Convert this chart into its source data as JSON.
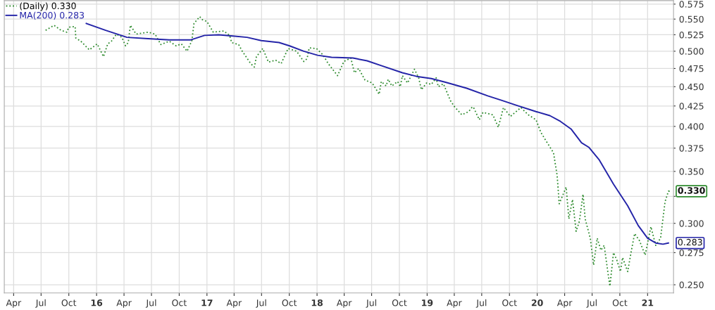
{
  "chart_data": {
    "type": "line",
    "log": "y",
    "grid": true,
    "legend": "top left",
    "xlim": [
      "2015-03-01",
      "2021-03-28"
    ],
    "ylim": [
      0.244,
      0.581
    ],
    "xticks": [
      {
        "value": "2015-04-01",
        "label": "Apr"
      },
      {
        "value": "2015-07-01",
        "label": "Jul"
      },
      {
        "value": "2015-10-01",
        "label": "Oct"
      },
      {
        "value": "2016-01-01",
        "label": "16"
      },
      {
        "value": "2016-04-01",
        "label": "Apr"
      },
      {
        "value": "2016-07-01",
        "label": "Jul"
      },
      {
        "value": "2016-10-01",
        "label": "Oct"
      },
      {
        "value": "2017-01-01",
        "label": "17"
      },
      {
        "value": "2017-04-01",
        "label": "Apr"
      },
      {
        "value": "2017-07-01",
        "label": "Jul"
      },
      {
        "value": "2017-10-01",
        "label": "Oct"
      },
      {
        "value": "2018-01-01",
        "label": "18"
      },
      {
        "value": "2018-04-01",
        "label": "Apr"
      },
      {
        "value": "2018-07-01",
        "label": "Jul"
      },
      {
        "value": "2018-10-01",
        "label": "Oct"
      },
      {
        "value": "2019-01-01",
        "label": "19"
      },
      {
        "value": "2019-04-01",
        "label": "Apr"
      },
      {
        "value": "2019-07-01",
        "label": "Jul"
      },
      {
        "value": "2019-10-01",
        "label": "Oct"
      },
      {
        "value": "2020-01-01",
        "label": "20"
      },
      {
        "value": "2020-04-01",
        "label": "Apr"
      },
      {
        "value": "2020-07-01",
        "label": "Jul"
      },
      {
        "value": "2020-10-01",
        "label": "Oct"
      },
      {
        "value": "2021-01-01",
        "label": "21"
      }
    ],
    "yticks": [
      {
        "value": 0.25,
        "label": "0.250"
      },
      {
        "value": 0.275,
        "label": "0.275"
      },
      {
        "value": 0.3,
        "label": "0.300"
      },
      {
        "value": 0.325,
        "label": null
      },
      {
        "value": 0.35,
        "label": "0.350"
      },
      {
        "value": 0.375,
        "label": "0.375"
      },
      {
        "value": 0.4,
        "label": "0.400"
      },
      {
        "value": 0.425,
        "label": "0.425"
      },
      {
        "value": 0.45,
        "label": "0.450"
      },
      {
        "value": 0.475,
        "label": "0.475"
      },
      {
        "value": 0.5,
        "label": "0.500"
      },
      {
        "value": 0.525,
        "label": "0.525"
      },
      {
        "value": 0.55,
        "label": "0.550"
      },
      {
        "value": 0.575,
        "label": "0.575"
      }
    ],
    "annotations": [
      {
        "text": "0.330",
        "x": "2021-03-21",
        "y": 0.33
      },
      {
        "text": "0.283",
        "x": "2021-03-11",
        "y": 0.283
      }
    ],
    "series": [
      {
        "name": "(Daily) 0.330",
        "color": "#2e8b2e",
        "line_style": "dotted",
        "x": [
          "2015-07-16",
          "2015-08-13",
          "2015-09-05",
          "2015-09-24",
          "2015-10-01",
          "2015-10-22",
          "2015-10-24",
          "2015-11-10",
          "2015-12-08",
          "2016-01-03",
          "2016-01-24",
          "2016-02-07",
          "2016-02-19",
          "2016-03-07",
          "2016-03-25",
          "2016-04-06",
          "2016-04-15",
          "2016-04-22",
          "2016-05-11",
          "2016-06-20",
          "2016-07-13",
          "2016-08-01",
          "2016-08-29",
          "2016-09-21",
          "2016-10-08",
          "2016-10-27",
          "2016-11-12",
          "2016-11-19",
          "2016-12-08",
          "2016-12-17",
          "2017-01-01",
          "2017-01-22",
          "2017-02-26",
          "2017-03-17",
          "2017-03-24",
          "2017-04-16",
          "2017-04-28",
          "2017-05-26",
          "2017-06-07",
          "2017-06-14",
          "2017-07-05",
          "2017-07-24",
          "2017-08-16",
          "2017-09-04",
          "2017-09-27",
          "2017-10-25",
          "2017-11-18",
          "2017-11-29",
          "2017-12-06",
          "2017-12-30",
          "2018-01-20",
          "2018-02-07",
          "2018-03-10",
          "2018-03-31",
          "2018-04-23",
          "2018-05-05",
          "2018-05-19",
          "2018-06-09",
          "2018-07-03",
          "2018-07-26",
          "2018-08-02",
          "2018-08-18",
          "2018-08-25",
          "2018-09-06",
          "2018-09-25",
          "2018-10-04",
          "2018-10-11",
          "2018-10-28",
          "2018-11-20",
          "2018-12-04",
          "2018-12-13",
          "2018-12-30",
          "2019-01-15",
          "2019-01-31",
          "2019-02-07",
          "2019-02-24",
          "2019-03-19",
          "2019-04-02",
          "2019-04-26",
          "2019-05-19",
          "2019-05-31",
          "2019-06-04",
          "2019-06-23",
          "2019-07-05",
          "2019-08-07",
          "2019-08-25",
          "2019-09-11",
          "2019-10-04",
          "2019-11-08",
          "2019-12-02",
          "2019-12-28",
          "2020-01-13",
          "2020-02-05",
          "2020-02-24",
          "2020-03-07",
          "2020-03-14",
          "2020-04-06",
          "2020-04-15",
          "2020-04-27",
          "2020-05-09",
          "2020-05-20",
          "2020-06-01",
          "2020-06-08",
          "2020-06-25",
          "2020-07-06",
          "2020-07-18",
          "2020-07-30",
          "2020-08-10",
          "2020-08-22",
          "2020-08-29",
          "2020-09-10",
          "2020-09-21",
          "2020-10-03",
          "2020-10-10",
          "2020-10-27",
          "2020-11-07",
          "2020-11-19",
          "2020-12-05",
          "2020-12-24",
          "2021-01-12",
          "2021-01-28",
          "2021-02-13",
          "2021-02-28",
          "2021-03-11",
          "2021-03-21"
        ],
        "values": [
          0.532,
          0.54,
          0.532,
          0.529,
          0.537,
          0.538,
          0.52,
          0.515,
          0.502,
          0.511,
          0.492,
          0.511,
          0.515,
          0.526,
          0.521,
          0.508,
          0.513,
          0.54,
          0.526,
          0.529,
          0.526,
          0.51,
          0.515,
          0.508,
          0.511,
          0.5,
          0.516,
          0.543,
          0.554,
          0.549,
          0.546,
          0.529,
          0.531,
          0.524,
          0.513,
          0.51,
          0.5,
          0.482,
          0.477,
          0.492,
          0.504,
          0.484,
          0.487,
          0.482,
          0.504,
          0.5,
          0.485,
          0.489,
          0.505,
          0.504,
          0.495,
          0.482,
          0.465,
          0.485,
          0.49,
          0.469,
          0.475,
          0.459,
          0.455,
          0.44,
          0.457,
          0.451,
          0.46,
          0.451,
          0.457,
          0.45,
          0.465,
          0.455,
          0.474,
          0.462,
          0.446,
          0.455,
          0.453,
          0.462,
          0.45,
          0.454,
          0.432,
          0.424,
          0.414,
          0.418,
          0.424,
          0.423,
          0.408,
          0.417,
          0.414,
          0.399,
          0.423,
          0.412,
          0.423,
          0.414,
          0.408,
          0.393,
          0.38,
          0.37,
          0.346,
          0.318,
          0.334,
          0.304,
          0.322,
          0.293,
          0.302,
          0.327,
          0.304,
          0.287,
          0.265,
          0.287,
          0.277,
          0.281,
          0.26,
          0.249,
          0.275,
          0.269,
          0.26,
          0.271,
          0.26,
          0.275,
          0.291,
          0.285,
          0.273,
          0.297,
          0.281,
          0.287,
          0.32,
          0.33,
          0.33
        ]
      },
      {
        "name": "MA(200) 0.283",
        "color": "#2424a8",
        "line_style": "solid",
        "x": [
          "2015-11-28",
          "2016-01-31",
          "2016-04-11",
          "2016-06-20",
          "2016-08-29",
          "2016-11-07",
          "2016-12-24",
          "2017-02-09",
          "2017-03-28",
          "2017-05-14",
          "2017-06-30",
          "2017-08-28",
          "2017-10-02",
          "2017-11-18",
          "2018-01-03",
          "2018-02-18",
          "2018-04-30",
          "2018-06-16",
          "2018-08-02",
          "2018-10-11",
          "2018-11-27",
          "2019-01-15",
          "2019-03-03",
          "2019-05-12",
          "2019-07-21",
          "2019-09-06",
          "2019-10-23",
          "2019-12-28",
          "2020-02-12",
          "2020-03-18",
          "2020-04-22",
          "2020-05-27",
          "2020-06-20",
          "2020-07-25",
          "2020-09-10",
          "2020-10-27",
          "2020-12-01",
          "2021-01-01",
          "2021-01-28",
          "2021-02-21",
          "2021-03-11"
        ],
        "values": [
          0.543,
          0.532,
          0.521,
          0.519,
          0.517,
          0.517,
          0.524,
          0.525,
          0.523,
          0.521,
          0.516,
          0.513,
          0.508,
          0.5,
          0.494,
          0.491,
          0.49,
          0.486,
          0.479,
          0.469,
          0.464,
          0.461,
          0.456,
          0.448,
          0.438,
          0.432,
          0.426,
          0.418,
          0.413,
          0.406,
          0.397,
          0.381,
          0.376,
          0.362,
          0.337,
          0.316,
          0.298,
          0.287,
          0.283,
          0.282,
          0.283
        ]
      }
    ]
  }
}
